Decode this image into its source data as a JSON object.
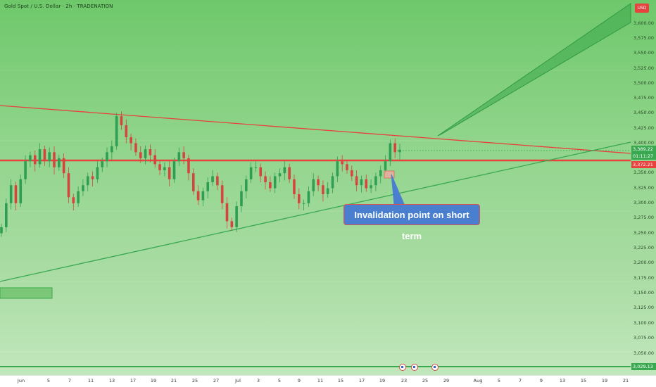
{
  "header": {
    "title": "Gold Spot / U.S. Dollar · 2h · TRADENATION"
  },
  "currency_badge": "USD",
  "price_axis": {
    "ticks": [
      "3,600.00",
      "3,575.00",
      "3,550.00",
      "3,525.00",
      "3,500.00",
      "3,475.00",
      "3,450.00",
      "3,425.00",
      "3,400.00",
      "3,350.00",
      "3,325.00",
      "3,300.00",
      "3,275.00",
      "3,250.00",
      "3,225.00",
      "3,200.00",
      "3,175.00",
      "3,150.00",
      "3,125.00",
      "3,100.00",
      "3,075.00",
      "3,050.00"
    ]
  },
  "price_tags": {
    "current_price": "3,389.22",
    "countdown": "01:11:27",
    "key_level": "3,372.21",
    "bottom_level": "3,029.13"
  },
  "time_axis": {
    "labels": [
      "Jun",
      "5",
      "7",
      "11",
      "13",
      "17",
      "19",
      "21",
      "25",
      "27",
      "Jul",
      "3",
      "5",
      "9",
      "11",
      "15",
      "17",
      "19",
      "23",
      "25",
      "29",
      "Aug",
      "5",
      "7",
      "9",
      "13",
      "15",
      "19",
      "21"
    ]
  },
  "annotation": {
    "text": "Invalidation point on short term"
  },
  "event_flags": [
    "us-flag-icon",
    "us-flag-icon",
    "us-flag-icon"
  ],
  "colors": {
    "background_top": "#6ec86a",
    "background_bottom": "#c4e8bf",
    "red_line": "#e8413e",
    "green_line": "#39a851",
    "bull_candle": "#2e9e52",
    "bear_candle": "#d6453d",
    "callout": "#4a7fcf"
  },
  "chart_data": {
    "type": "candlestick",
    "title": "Gold Spot / U.S. Dollar · 2h · TRADENATION",
    "ylim": [
      3029.13,
      3615
    ],
    "key_level": 3372.21,
    "current_price": 3389.22,
    "closes": [
      3260,
      3300,
      3330,
      3300,
      3340,
      3370,
      3380,
      3365,
      3390,
      3370,
      3385,
      3360,
      3375,
      3350,
      3310,
      3300,
      3320,
      3330,
      3345,
      3340,
      3360,
      3370,
      3385,
      3395,
      3445,
      3430,
      3410,
      3400,
      3385,
      3375,
      3390,
      3380,
      3365,
      3355,
      3360,
      3340,
      3370,
      3385,
      3375,
      3350,
      3320,
      3305,
      3320,
      3335,
      3345,
      3330,
      3300,
      3270,
      3260,
      3295,
      3320,
      3340,
      3360,
      3360,
      3345,
      3335,
      3325,
      3345,
      3350,
      3360,
      3340,
      3315,
      3300,
      3300,
      3320,
      3340,
      3330,
      3315,
      3325,
      3345,
      3370,
      3365,
      3355,
      3345,
      3330,
      3340,
      3325,
      3330,
      3345,
      3355,
      3370,
      3400,
      3385,
      3389.22
    ]
  }
}
